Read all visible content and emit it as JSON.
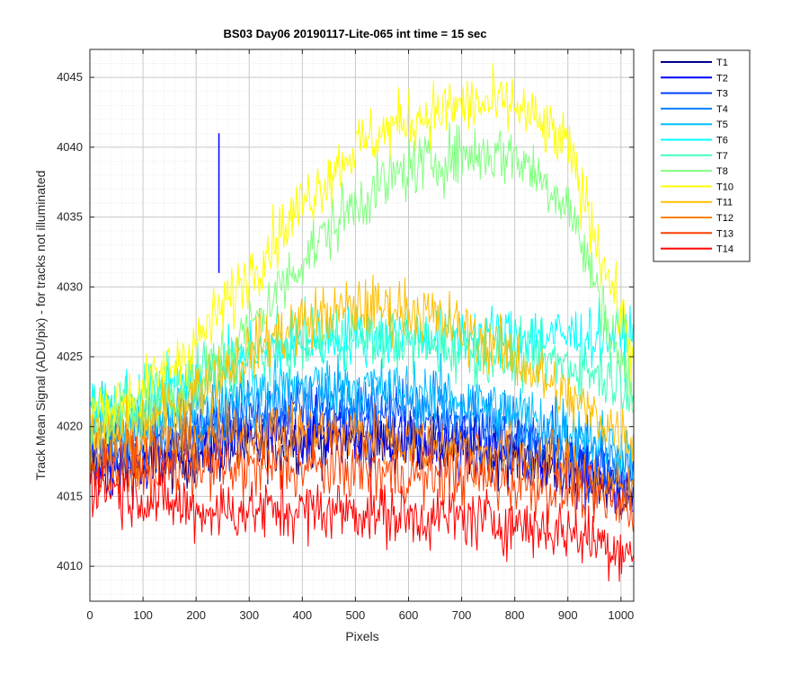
{
  "chart_data": {
    "type": "line",
    "title": "BS03 Day06 20190117-Lite-065 int time = 15 sec",
    "xlabel": "Pixels",
    "ylabel": "Track Mean Signal (ADU/pix) - for tracks not illuminated",
    "xlim": [
      0,
      1024
    ],
    "ylim": [
      4007.5,
      4047
    ],
    "xticks": [
      0,
      100,
      200,
      300,
      400,
      500,
      600,
      700,
      800,
      900,
      1000
    ],
    "yticks": [
      4010,
      4015,
      4020,
      4025,
      4030,
      4035,
      4040,
      4045
    ],
    "grid": true,
    "minor_grid": true,
    "legend_position": "outside-top-right",
    "noise_note_free": true,
    "series": [
      {
        "name": "T1",
        "color": "#00008f",
        "x": [
          0,
          100,
          200,
          300,
          400,
          500,
          600,
          700,
          800,
          900,
          1024
        ],
        "y": [
          4017,
          4017,
          4018,
          4018.5,
          4019,
          4019,
          4019,
          4018.5,
          4018,
          4017,
          4015
        ]
      },
      {
        "name": "T2",
        "color": "#0000ff",
        "x": [
          0,
          100,
          200,
          300,
          400,
          500,
          600,
          700,
          800,
          900,
          1024
        ],
        "y": [
          4017,
          4017.5,
          4018.5,
          4019,
          4019.5,
          4019.5,
          4019,
          4018.5,
          4018,
          4017,
          4015
        ],
        "spike": {
          "x": 243,
          "y_from": 4031,
          "y_to": 4041
        }
      },
      {
        "name": "T3",
        "color": "#0040ff",
        "x": [
          0,
          100,
          200,
          300,
          400,
          500,
          600,
          700,
          800,
          900,
          1024
        ],
        "y": [
          4018,
          4018.5,
          4019.5,
          4020.5,
          4021,
          4021,
          4020.5,
          4020,
          4019,
          4018,
          4016
        ]
      },
      {
        "name": "T4",
        "color": "#0080ff",
        "x": [
          0,
          100,
          200,
          300,
          400,
          500,
          600,
          700,
          800,
          900,
          1024
        ],
        "y": [
          4019,
          4019.5,
          4020.5,
          4021.5,
          4022,
          4022,
          4021.5,
          4021,
          4020,
          4019,
          4017
        ]
      },
      {
        "name": "T5",
        "color": "#00bfff",
        "x": [
          0,
          100,
          200,
          300,
          400,
          500,
          600,
          700,
          800,
          900,
          1024
        ],
        "y": [
          4020,
          4020.5,
          4021.5,
          4022.5,
          4023,
          4023,
          4022.5,
          4022,
          4021,
          4020,
          4018
        ]
      },
      {
        "name": "T6",
        "color": "#00ffff",
        "x": [
          0,
          100,
          200,
          300,
          400,
          500,
          600,
          700,
          800,
          900,
          1024
        ],
        "y": [
          4021,
          4022,
          4023.5,
          4025,
          4026,
          4026.5,
          4026.5,
          4026.5,
          4026.5,
          4026.5,
          4026.5
        ]
      },
      {
        "name": "T7",
        "color": "#40ffbf",
        "x": [
          0,
          100,
          200,
          300,
          400,
          500,
          600,
          700,
          800,
          900,
          1024
        ],
        "y": [
          4021,
          4022,
          4023.5,
          4025,
          4026,
          4026.5,
          4026,
          4025.5,
          4025,
          4024.5,
          4023
        ]
      },
      {
        "name": "T8",
        "color": "#80ff80",
        "x": [
          0,
          100,
          200,
          300,
          400,
          500,
          600,
          700,
          800,
          900,
          1024
        ],
        "y": [
          4020,
          4021,
          4023,
          4027,
          4032,
          4036,
          4038.5,
          4039.5,
          4039.5,
          4036,
          4022
        ]
      },
      {
        "name": "T10",
        "color": "#ffff00",
        "x": [
          0,
          100,
          200,
          300,
          400,
          500,
          600,
          700,
          800,
          900,
          1024
        ],
        "y": [
          4021,
          4022.5,
          4026,
          4031,
          4036,
          4040,
          4042,
          4043,
          4043,
          4040,
          4025
        ]
      },
      {
        "name": "T11",
        "color": "#ffbf00",
        "x": [
          0,
          100,
          200,
          300,
          400,
          500,
          600,
          700,
          800,
          900,
          1024
        ],
        "y": [
          4019,
          4020,
          4022.5,
          4025.5,
          4027.5,
          4028.5,
          4028.5,
          4027,
          4025,
          4022,
          4019
        ]
      },
      {
        "name": "T12",
        "color": "#ff8000",
        "x": [
          0,
          100,
          200,
          300,
          400,
          500,
          600,
          700,
          800,
          900,
          1024
        ],
        "y": [
          4018,
          4018.5,
          4019,
          4019.5,
          4019.5,
          4019.5,
          4019,
          4018.5,
          4018,
          4017,
          4015
        ]
      },
      {
        "name": "T13",
        "color": "#ff4000",
        "x": [
          0,
          100,
          200,
          300,
          400,
          500,
          600,
          700,
          800,
          900,
          1024
        ],
        "y": [
          4017,
          4017,
          4017,
          4017,
          4017,
          4017,
          4016.5,
          4016.5,
          4016,
          4015.5,
          4014
        ]
      },
      {
        "name": "T14",
        "color": "#ff0000",
        "x": [
          0,
          100,
          200,
          300,
          400,
          500,
          600,
          700,
          800,
          900,
          1024
        ],
        "y": [
          4016,
          4015,
          4014,
          4014,
          4014,
          4014,
          4013.5,
          4013.5,
          4013,
          4012.5,
          4011
        ]
      }
    ]
  }
}
